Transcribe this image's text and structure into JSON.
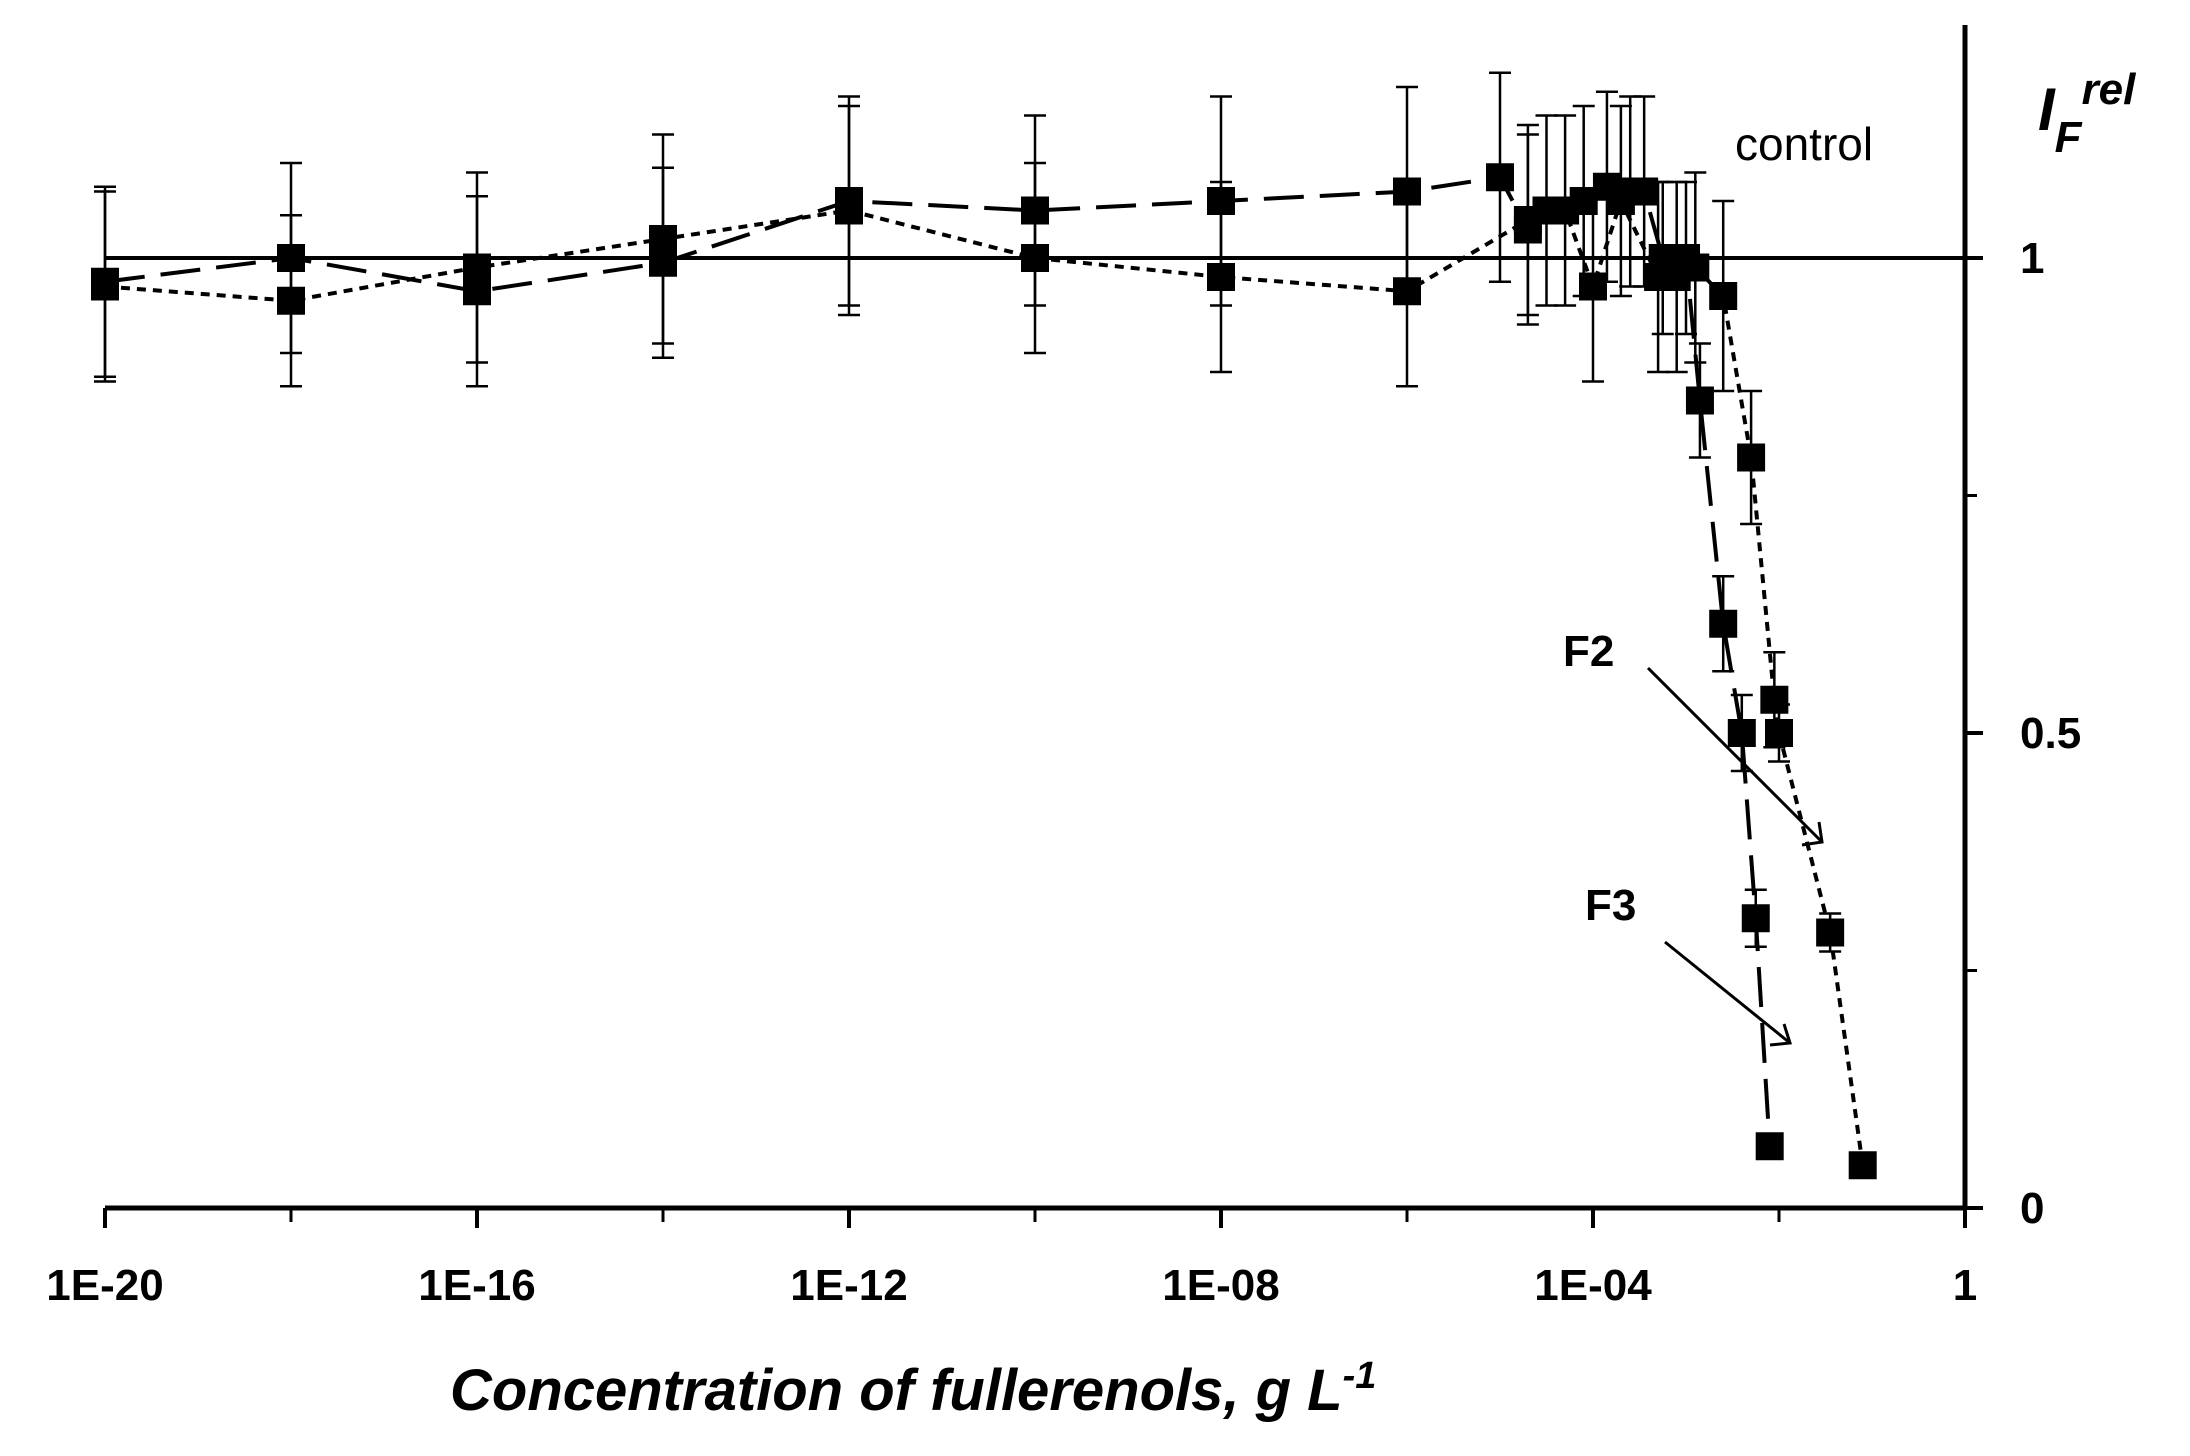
{
  "chart_data": {
    "type": "scatter",
    "title": "",
    "xlabel": "Concentration of fullerenols, g L",
    "xlabel_superscript": "-1",
    "ylabel": "I",
    "ylabel_subscript": "F",
    "ylabel_superscript": "rel",
    "x_scale": "log10",
    "xlim_log10": [
      -20,
      0
    ],
    "ylim": [
      0,
      1.25
    ],
    "x_tick_labels": [
      "1E-20",
      "1E-16",
      "1E-12",
      "1E-08",
      "1E-04",
      "1"
    ],
    "x_tick_log10": [
      -20,
      -16,
      -12,
      -8,
      -4,
      0
    ],
    "y_tick_labels": [
      "0",
      "0.5",
      "1"
    ],
    "y_tick_values": [
      0,
      0.5,
      1
    ],
    "y_axis_side": "right",
    "control_line": {
      "y": 1,
      "label": "control"
    },
    "annotations": [
      {
        "text": "F2",
        "series": "F2"
      },
      {
        "text": "F3",
        "series": "F3"
      }
    ],
    "series": [
      {
        "name": "F2",
        "line_style": "dotted",
        "points": [
          {
            "log10x": -20,
            "y": 0.97,
            "err": 0.1
          },
          {
            "log10x": -18,
            "y": 0.955,
            "err": 0.09
          },
          {
            "log10x": -16,
            "y": 0.99,
            "err": 0.1
          },
          {
            "log10x": -14,
            "y": 1.02,
            "err": 0.11
          },
          {
            "log10x": -12,
            "y": 1.05,
            "err": 0.11
          },
          {
            "log10x": -10,
            "y": 1.0,
            "err": 0.1
          },
          {
            "log10x": -8,
            "y": 0.98,
            "err": 0.1
          },
          {
            "log10x": -6,
            "y": 0.965,
            "err": 0.1
          },
          {
            "log10x": -4.7,
            "y": 1.04,
            "err": 0.1
          },
          {
            "log10x": -4.3,
            "y": 1.05,
            "err": 0.1
          },
          {
            "log10x": -4,
            "y": 0.97,
            "err": 0.1
          },
          {
            "log10x": -3.7,
            "y": 1.06,
            "err": 0.1
          },
          {
            "log10x": -3.3,
            "y": 0.98,
            "err": 0.1
          },
          {
            "log10x": -3.1,
            "y": 0.98,
            "err": 0.1
          },
          {
            "log10x": -2.9,
            "y": 0.99,
            "err": 0.1
          },
          {
            "log10x": -2.6,
            "y": 0.96,
            "err": 0.1
          },
          {
            "log10x": -2.3,
            "y": 0.79,
            "err": 0.07
          },
          {
            "log10x": -2.05,
            "y": 0.535,
            "err": 0.05
          },
          {
            "log10x": -2.0,
            "y": 0.5,
            "err": 0.03
          },
          {
            "log10x": -1.45,
            "y": 0.29,
            "err": 0.02
          },
          {
            "log10x": -1.1,
            "y": 0.045,
            "err": 0.0
          }
        ]
      },
      {
        "name": "F3",
        "line_style": "long-dash",
        "points": [
          {
            "log10x": -20,
            "y": 0.975,
            "err": 0.1
          },
          {
            "log10x": -18,
            "y": 1.0,
            "err": 0.1
          },
          {
            "log10x": -16,
            "y": 0.965,
            "err": 0.1
          },
          {
            "log10x": -14,
            "y": 0.995,
            "err": 0.1
          },
          {
            "log10x": -12,
            "y": 1.06,
            "err": 0.11
          },
          {
            "log10x": -10,
            "y": 1.05,
            "err": 0.1
          },
          {
            "log10x": -8,
            "y": 1.06,
            "err": 0.11
          },
          {
            "log10x": -6,
            "y": 1.07,
            "err": 0.11
          },
          {
            "log10x": -5.0,
            "y": 1.085,
            "err": 0.11
          },
          {
            "log10x": -4.7,
            "y": 1.03,
            "err": 0.1
          },
          {
            "log10x": -4.5,
            "y": 1.05,
            "err": 0.1
          },
          {
            "log10x": -4.1,
            "y": 1.06,
            "err": 0.1
          },
          {
            "log10x": -3.85,
            "y": 1.075,
            "err": 0.1
          },
          {
            "log10x": -3.6,
            "y": 1.07,
            "err": 0.1
          },
          {
            "log10x": -3.45,
            "y": 1.07,
            "err": 0.1
          },
          {
            "log10x": -3.25,
            "y": 1.0,
            "err": 0.08
          },
          {
            "log10x": -3.0,
            "y": 1.0,
            "err": 0.08
          },
          {
            "log10x": -2.85,
            "y": 0.85,
            "err": 0.06
          },
          {
            "log10x": -2.6,
            "y": 0.615,
            "err": 0.05
          },
          {
            "log10x": -2.4,
            "y": 0.5,
            "err": 0.04
          },
          {
            "log10x": -2.25,
            "y": 0.305,
            "err": 0.03
          },
          {
            "log10x": -2.1,
            "y": 0.065,
            "err": 0.0
          }
        ]
      }
    ]
  }
}
